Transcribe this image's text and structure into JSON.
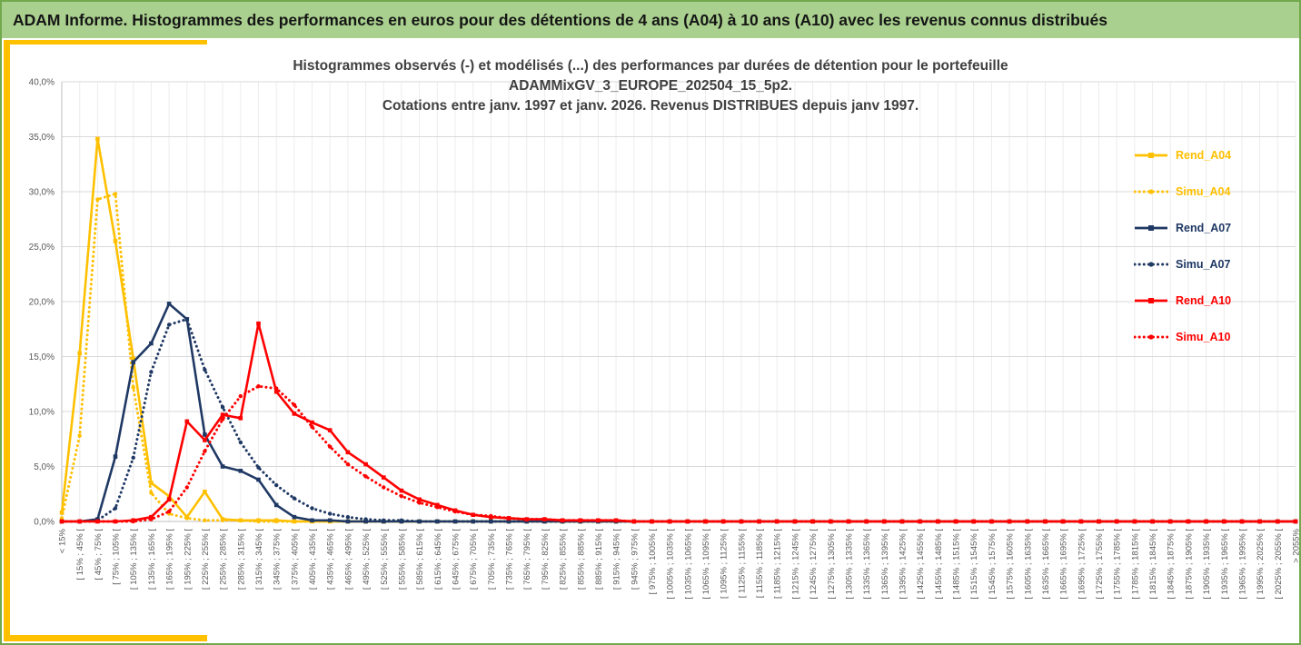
{
  "banner": {
    "title": "ADAM Informe. Histogrammes des performances en euros pour des détentions de 4 ans (A04) à 10 ans (A10) avec les revenus connus distribués"
  },
  "colors": {
    "banner_bg": "#A9D08E",
    "banner_text": "#151515",
    "accent_gold": "#FFC000",
    "border_green": "#73a94d",
    "grid_major": "#D9D9D9",
    "grid_minor": "#ECECEC",
    "axis": "#BFBFBF",
    "tick_text": "#595959",
    "title_text": "#404040",
    "gold": "#FFC000",
    "navy": "#1F3864",
    "red": "#FF0000"
  },
  "chart_data": {
    "type": "line",
    "title_lines": [
      "Histogrammes observés (-) et modélisés (...) des performances par durées de détention pour le portefeuille",
      "ADAMMixGV_3_EUROPE_202504_15_5p2.",
      "Cotations entre janv. 1997 et janv. 2026. Revenus DISTRIBUES depuis janv 1997."
    ],
    "xlabel": "",
    "ylabel": "",
    "ylim": [
      0,
      40
    ],
    "grid": true,
    "legend_position": "right",
    "y_ticks": [
      "0,0%",
      "5,0%",
      "10,0%",
      "15,0%",
      "20,0%",
      "25,0%",
      "30,0%",
      "35,0%",
      "40,0%"
    ],
    "categories": [
      "< 15%",
      "[ 15% ; 45% [",
      "[ 45% ; 75% [",
      "[ 75% ; 105% [",
      "[ 105% ; 135% [",
      "[ 135% ; 165% [",
      "[ 165% ; 195% [",
      "[ 195% ; 225% [",
      "[ 225% ; 255% [",
      "[ 255% ; 285% [",
      "[ 285% ; 315% [",
      "[ 315% ; 345% [",
      "[ 345% ; 375% [",
      "[ 375% ; 405% [",
      "[ 405% ; 435% [",
      "[ 435% ; 465% [",
      "[ 465% ; 495% [",
      "[ 495% ; 525% [",
      "[ 525% ; 555% [",
      "[ 555% ; 585% [",
      "[ 585% ; 615% [",
      "[ 615% ; 645% [",
      "[ 645% ; 675% [",
      "[ 675% ; 705% [",
      "[ 705% ; 735% [",
      "[ 735% ; 765% [",
      "[ 765% ; 795% [",
      "[ 795% ; 825% [",
      "[ 825% ; 855% [",
      "[ 855% ; 885% [",
      "[ 885% ; 915% [",
      "[ 915% ; 945% [",
      "[ 945% ; 975% [",
      "[ 975% ; 1005% [",
      "[ 1005% ; 1035% [",
      "[ 1035% ; 1065% [",
      "[ 1065% ; 1095% [",
      "[ 1095% ; 1125% [",
      "[ 1125% ; 1155% [",
      "[ 1155% ; 1185% [",
      "[ 1185% ; 1215% [",
      "[ 1215% ; 1245% [",
      "[ 1245% ; 1275% [",
      "[ 1275% ; 1305% [",
      "[ 1305% ; 1335% [",
      "[ 1335% ; 1365% [",
      "[ 1365% ; 1395% [",
      "[ 1395% ; 1425% [",
      "[ 1425% ; 1455% [",
      "[ 1455% ; 1485% [",
      "[ 1485% ; 1515% [",
      "[ 1515% ; 1545% [",
      "[ 1545% ; 1575% [",
      "[ 1575% ; 1605% [",
      "[ 1605% ; 1635% [",
      "[ 1635% ; 1665% [",
      "[ 1665% ; 1695% [",
      "[ 1695% ; 1725% [",
      "[ 1725% ; 1755% [",
      "[ 1755% ; 1785% [",
      "[ 1785% ; 1815% [",
      "[ 1815% ; 1845% [",
      "[ 1845% ; 1875% [",
      "[ 1875% ; 1905% [",
      "[ 1905% ; 1935% [",
      "[ 1935% ; 1965% [",
      "[ 1965% ; 1995% [",
      "[ 1995% ; 2025% [",
      "[ 2025% ; 2055% [",
      "> 2055%"
    ],
    "series": [
      {
        "name": "Rend_A04",
        "color": "#FFC000",
        "style": "solid",
        "marker": "square",
        "values": [
          0.8,
          15.3,
          34.8,
          25.5,
          14.8,
          3.5,
          2.3,
          0.4,
          2.7,
          0.2,
          0.1,
          0.1,
          0.1,
          0,
          0,
          0,
          0,
          0,
          0,
          0,
          0,
          0,
          0,
          0,
          0,
          0,
          0,
          0,
          0,
          0,
          0,
          0,
          0,
          0,
          0,
          0,
          0,
          0,
          0,
          0,
          0,
          0,
          0,
          0,
          0,
          0,
          0,
          0,
          0,
          0,
          0,
          0,
          0,
          0,
          0,
          0,
          0,
          0,
          0,
          0,
          0,
          0,
          0,
          0,
          0,
          0,
          0,
          0,
          0,
          0
        ]
      },
      {
        "name": "Simu_A04",
        "color": "#FFC000",
        "style": "dotted",
        "marker": "circle",
        "values": [
          0.3,
          7.8,
          29.3,
          29.8,
          12.2,
          2.6,
          0.7,
          0.3,
          0.1,
          0.1,
          0.1,
          0,
          0,
          0,
          0,
          0,
          0,
          0,
          0,
          0,
          0,
          0,
          0,
          0,
          0,
          0,
          0,
          0,
          0,
          0,
          0,
          0,
          0,
          0,
          0,
          0,
          0,
          0,
          0,
          0,
          0,
          0,
          0,
          0,
          0,
          0,
          0,
          0,
          0,
          0,
          0,
          0,
          0,
          0,
          0,
          0,
          0,
          0,
          0,
          0,
          0,
          0,
          0,
          0,
          0,
          0,
          0,
          0,
          0,
          0
        ]
      },
      {
        "name": "Rend_A07",
        "color": "#1F3864",
        "style": "solid",
        "marker": "square",
        "values": [
          0,
          0,
          0.2,
          5.9,
          14.5,
          16.2,
          19.8,
          18.4,
          7.9,
          5.0,
          4.6,
          3.8,
          1.5,
          0.4,
          0.1,
          0.1,
          0,
          0,
          0,
          0,
          0,
          0,
          0,
          0,
          0,
          0,
          0,
          0,
          0,
          0,
          0,
          0,
          0,
          0,
          0,
          0,
          0,
          0,
          0,
          0,
          0,
          0,
          0,
          0,
          0,
          0,
          0,
          0,
          0,
          0,
          0,
          0,
          0,
          0,
          0,
          0,
          0,
          0,
          0,
          0,
          0,
          0,
          0,
          0,
          0,
          0,
          0,
          0,
          0,
          0
        ]
      },
      {
        "name": "Simu_A07",
        "color": "#1F3864",
        "style": "dotted",
        "marker": "circle",
        "values": [
          0,
          0,
          0.1,
          1.2,
          5.8,
          13.6,
          17.9,
          18.4,
          13.8,
          10.4,
          7.2,
          4.9,
          3.3,
          2.1,
          1.2,
          0.7,
          0.4,
          0.2,
          0.1,
          0.1,
          0,
          0,
          0,
          0,
          0,
          0,
          0,
          0,
          0,
          0,
          0,
          0,
          0,
          0,
          0,
          0,
          0,
          0,
          0,
          0,
          0,
          0,
          0,
          0,
          0,
          0,
          0,
          0,
          0,
          0,
          0,
          0,
          0,
          0,
          0,
          0,
          0,
          0,
          0,
          0,
          0,
          0,
          0,
          0,
          0,
          0,
          0,
          0,
          0,
          0
        ]
      },
      {
        "name": "Rend_A10",
        "color": "#FF0000",
        "style": "solid",
        "marker": "square",
        "values": [
          0,
          0,
          0,
          0,
          0.1,
          0.4,
          2.0,
          9.1,
          7.4,
          9.7,
          9.4,
          18.0,
          11.8,
          9.8,
          9.0,
          8.3,
          6.3,
          5.2,
          4.0,
          2.8,
          2.0,
          1.5,
          1.0,
          0.6,
          0.4,
          0.3,
          0.2,
          0.2,
          0.1,
          0.1,
          0.1,
          0.1,
          0,
          0,
          0,
          0,
          0,
          0,
          0,
          0,
          0,
          0,
          0,
          0,
          0,
          0,
          0,
          0,
          0,
          0,
          0,
          0,
          0,
          0,
          0,
          0,
          0,
          0,
          0,
          0,
          0,
          0,
          0,
          0,
          0,
          0,
          0,
          0,
          0,
          0
        ]
      },
      {
        "name": "Simu_A10",
        "color": "#FF0000",
        "style": "dotted",
        "marker": "circle",
        "values": [
          0,
          0,
          0,
          0,
          0,
          0.2,
          0.9,
          3.1,
          6.4,
          9.3,
          11.4,
          12.3,
          12.1,
          10.6,
          8.6,
          6.8,
          5.2,
          4.1,
          3.1,
          2.3,
          1.7,
          1.3,
          0.9,
          0.6,
          0.5,
          0.3,
          0.2,
          0.2,
          0.1,
          0.1,
          0.1,
          0.1,
          0,
          0,
          0,
          0,
          0,
          0,
          0,
          0,
          0,
          0,
          0,
          0,
          0,
          0,
          0,
          0,
          0,
          0,
          0,
          0,
          0,
          0,
          0,
          0,
          0,
          0,
          0,
          0,
          0,
          0,
          0,
          0,
          0,
          0,
          0,
          0,
          0,
          0
        ]
      }
    ]
  }
}
